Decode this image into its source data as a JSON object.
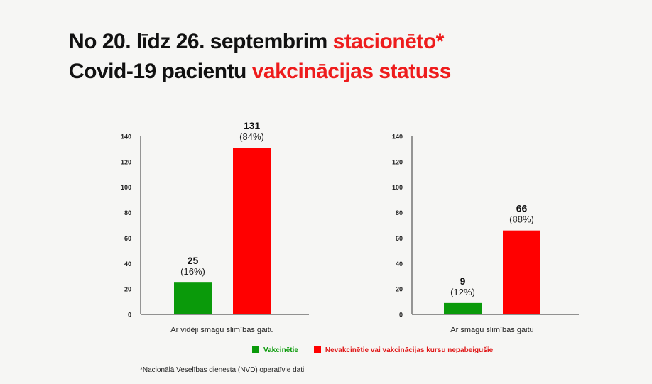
{
  "title": {
    "line1_black": "No 20. līdz 26. septembrim ",
    "line1_red": "stacionēto*",
    "line2_black": "Covid-19 pacientu ",
    "line2_red": "vakcinācijas statuss"
  },
  "colors": {
    "vaccinated": "#0a9a0a",
    "unvaccinated": "#ff0000",
    "accent": "#ee1c1c"
  },
  "chart_data": [
    {
      "type": "bar",
      "category": "Ar vidēji smagu slimības gaitu",
      "ylim": [
        0,
        140
      ],
      "yticks": [
        0,
        20,
        40,
        60,
        80,
        100,
        120,
        140
      ],
      "series": [
        {
          "name": "Vakcinētie",
          "value": 25,
          "label": "25",
          "pct": "(16%)"
        },
        {
          "name": "Nevakcinētie vai vakcinācijas kursu nepabeigušie",
          "value": 131,
          "label": "131",
          "pct": "(84%)"
        }
      ]
    },
    {
      "type": "bar",
      "category": "Ar smagu slimības gaitu",
      "ylim": [
        0,
        140
      ],
      "yticks": [
        0,
        20,
        40,
        60,
        80,
        100,
        120,
        140
      ],
      "series": [
        {
          "name": "Vakcinētie",
          "value": 9,
          "label": "9",
          "pct": "(12%)"
        },
        {
          "name": "Nevakcinētie vai vakcinācijas kursu nepabeigušie",
          "value": 66,
          "label": "66",
          "pct": "(88%)"
        }
      ]
    }
  ],
  "legend": [
    {
      "label": "Vakcinētie"
    },
    {
      "label": "Nevakcinētie vai vakcinācijas kursu nepabeigušie"
    }
  ],
  "footnote": "*Nacionālā Veselības dienesta (NVD) operatīvie dati"
}
